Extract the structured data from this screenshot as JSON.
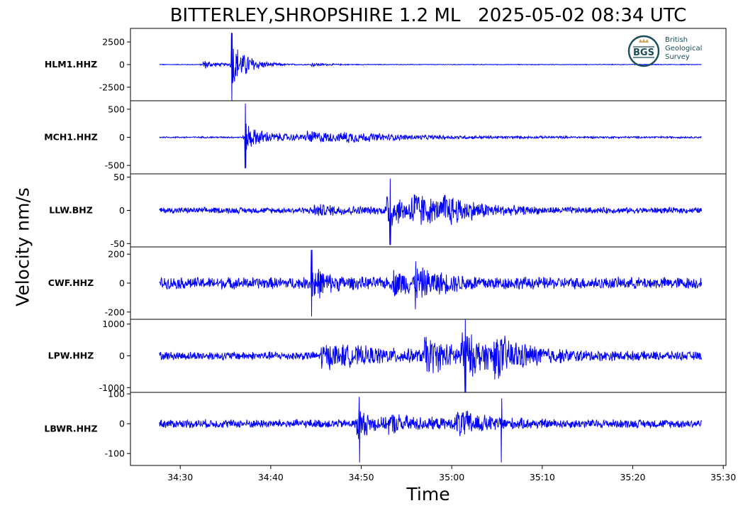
{
  "chart_data": {
    "type": "line",
    "title": "BITTERLEY,SHROPSHIRE 1.2 ML   2025-05-02 08:34 UTC",
    "xlabel": "Time",
    "ylabel": "Velocity nm/s",
    "x_tick_labels": [
      "34:30",
      "34:40",
      "34:50",
      "35:00",
      "35:10",
      "35:20",
      "35:30"
    ],
    "x_range_seconds_after_34_00": [
      24.5,
      90.3
    ],
    "trace_span_seconds_after_34_00": [
      27.7,
      87.6
    ],
    "line_color": "#0000ff",
    "grid": false,
    "legend": "none",
    "panels": [
      {
        "station": "HLM1.HHZ",
        "ylim": [
          -4000,
          4000
        ],
        "y_ticks": [
          {
            "value": 2500,
            "label": "2500"
          },
          {
            "value": 0,
            "label": "0"
          },
          {
            "value": -2500,
            "label": "-2500"
          }
        ],
        "noise_amplitude": 40,
        "bursts": [
          {
            "t": 32.5,
            "amp": 600,
            "decay": 1.5
          },
          {
            "t": 35.7,
            "amp": 3600,
            "decay": 1.2
          },
          {
            "t": 37.2,
            "amp": 500,
            "decay": 2.0
          },
          {
            "t": 44.5,
            "amp": 200,
            "decay": 2.0
          }
        ],
        "peaks": [
          {
            "t": 35.7,
            "max": 3500,
            "min": -4300
          }
        ]
      },
      {
        "station": "MCH1.HHZ",
        "ylim": [
          -650,
          650
        ],
        "y_ticks": [
          {
            "value": 500,
            "label": "500"
          },
          {
            "value": 0,
            "label": "0"
          },
          {
            "value": -500,
            "label": "-500"
          }
        ],
        "noise_amplitude": 15,
        "bursts": [
          {
            "t": 37.2,
            "amp": 400,
            "decay": 1.0
          },
          {
            "t": 38.5,
            "amp": 70,
            "decay": 15
          },
          {
            "t": 44.0,
            "amp": 80,
            "decay": 4.0
          },
          {
            "t": 48.0,
            "amp": 50,
            "decay": 5.0
          }
        ],
        "peaks": [
          {
            "t": 37.2,
            "max": 600,
            "min": -550
          }
        ]
      },
      {
        "station": "LLW.BHZ",
        "ylim": [
          -55,
          55
        ],
        "y_ticks": [
          {
            "value": 50,
            "label": "50"
          },
          {
            "value": 0,
            "label": "0"
          },
          {
            "value": -50,
            "label": "-50"
          }
        ],
        "noise_amplitude": 5,
        "bursts": [
          {
            "t": 44.5,
            "amp": 7,
            "decay": 5.0
          },
          {
            "t": 52.8,
            "amp": 32,
            "decay": 2.0
          },
          {
            "t": 55.5,
            "amp": 28,
            "decay": 3.0
          },
          {
            "t": 59.0,
            "amp": 18,
            "decay": 4.0
          }
        ],
        "peaks": [
          {
            "t": 53.2,
            "max": 48,
            "min": -52
          }
        ]
      },
      {
        "station": "CWF.HHZ",
        "ylim": [
          -250,
          250
        ],
        "y_ticks": [
          {
            "value": 200,
            "label": "200"
          },
          {
            "value": 0,
            "label": "0"
          },
          {
            "value": -200,
            "label": "-200"
          }
        ],
        "noise_amplitude": 45,
        "bursts": [
          {
            "t": 44.5,
            "amp": 130,
            "decay": 1.5
          },
          {
            "t": 53.5,
            "amp": 70,
            "decay": 3.0
          },
          {
            "t": 56.0,
            "amp": 60,
            "decay": 4.0
          }
        ],
        "peaks": [
          {
            "t": 44.5,
            "max": 230,
            "min": -230
          },
          {
            "t": 56.0,
            "max": 150,
            "min": -180
          }
        ]
      },
      {
        "station": "LPW.HHZ",
        "ylim": [
          -1150,
          1150
        ],
        "y_ticks": [
          {
            "value": 1000,
            "label": "1000"
          },
          {
            "value": 0,
            "label": "0"
          },
          {
            "value": -1000,
            "label": "-1000"
          }
        ],
        "noise_amplitude": 150,
        "bursts": [
          {
            "t": 45.5,
            "amp": 350,
            "decay": 8.0
          },
          {
            "t": 57.0,
            "amp": 550,
            "decay": 3.0
          },
          {
            "t": 61.0,
            "amp": 650,
            "decay": 3.0
          },
          {
            "t": 64.5,
            "amp": 500,
            "decay": 4.0
          }
        ],
        "peaks": [
          {
            "t": 61.5,
            "max": 1150,
            "min": -1150
          }
        ]
      },
      {
        "station": "LBWR.HHZ",
        "ylim": [
          -140,
          105
        ],
        "y_ticks": [
          {
            "value": 100,
            "label": "100"
          },
          {
            "value": 0,
            "label": "0"
          },
          {
            "value": -100,
            "label": "-100"
          }
        ],
        "noise_amplitude": 16,
        "bursts": [
          {
            "t": 49.5,
            "amp": 55,
            "decay": 1.5
          },
          {
            "t": 53.0,
            "amp": 25,
            "decay": 4.0
          },
          {
            "t": 60.5,
            "amp": 45,
            "decay": 3.0
          }
        ],
        "peaks": [
          {
            "t": 49.8,
            "max": 90,
            "min": -130
          },
          {
            "t": 65.5,
            "max": 85,
            "min": -130
          }
        ]
      }
    ]
  },
  "logo": {
    "abbrev": "BGS",
    "line1": "British",
    "line2": "Geological",
    "line3": "Survey",
    "color": "#1b4e5a",
    "accent_color": "#c9a65a"
  }
}
